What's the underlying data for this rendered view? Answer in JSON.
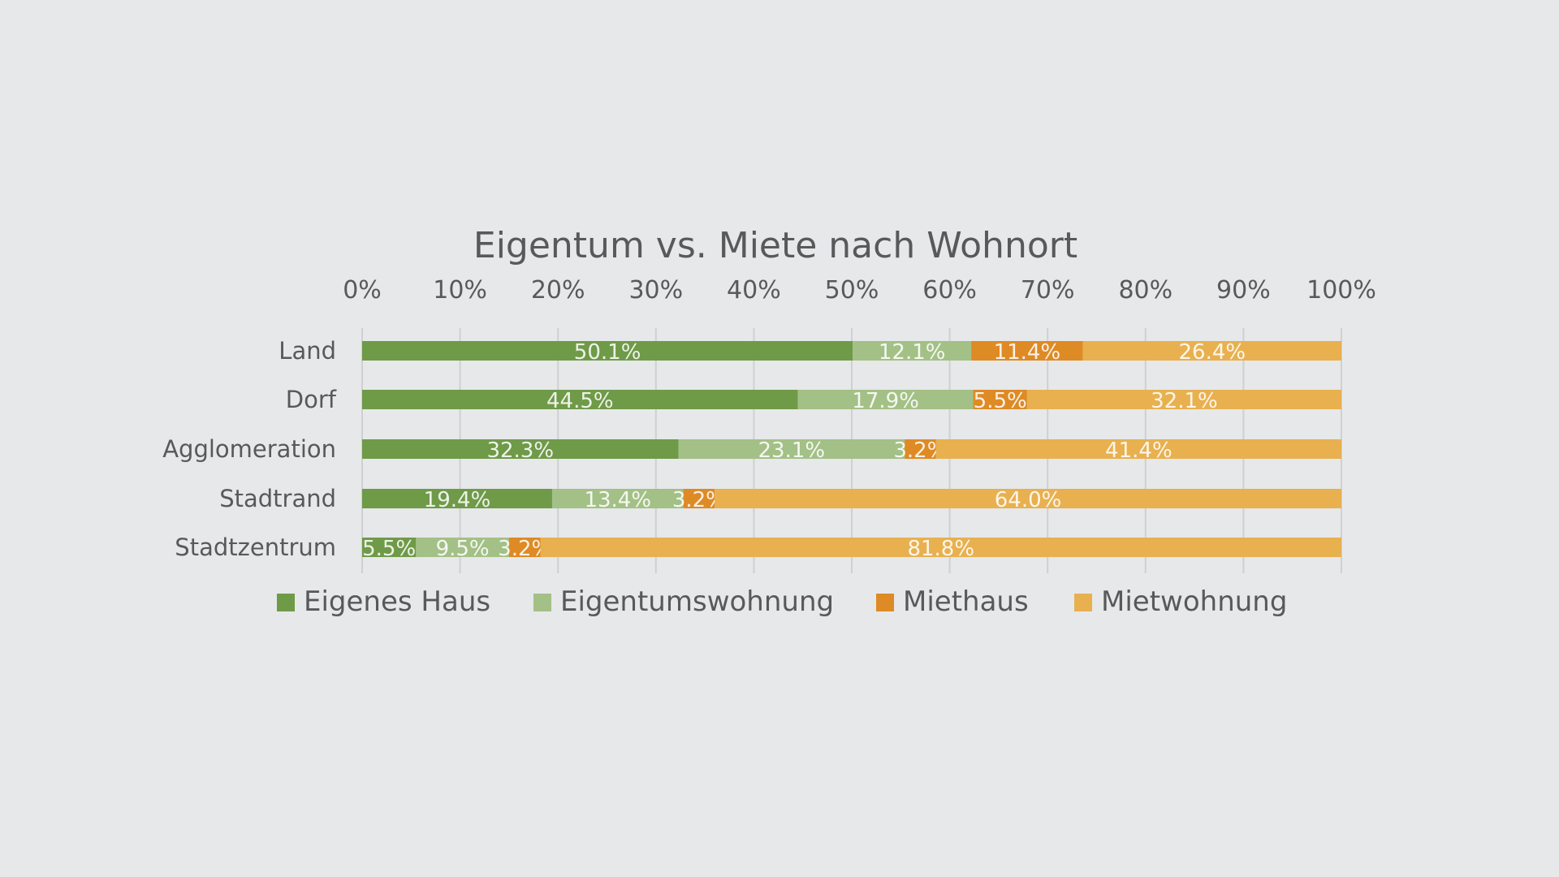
{
  "chart_data": {
    "type": "bar",
    "orientation": "horizontal",
    "stacked": true,
    "title": "Eigentum vs. Miete nach Wohnort",
    "categories": [
      "Land",
      "Dorf",
      "Agglomeration",
      "Stadtrand",
      "Stadtzentrum"
    ],
    "series": [
      {
        "name": "Eigenes Haus",
        "color": "#6f9a48",
        "values": [
          50.1,
          44.5,
          32.3,
          19.4,
          5.5
        ]
      },
      {
        "name": "Eigentumswohnung",
        "color": "#a3c086",
        "values": [
          12.1,
          17.9,
          23.1,
          13.4,
          9.5
        ]
      },
      {
        "name": "Miethaus",
        "color": "#de8a25",
        "values": [
          11.4,
          5.5,
          3.2,
          3.2,
          3.2
        ]
      },
      {
        "name": "Mietwohnung",
        "color": "#e8b04f",
        "values": [
          26.4,
          32.1,
          41.4,
          64.0,
          81.8
        ]
      }
    ],
    "data_labels": [
      [
        "50.1%",
        "12.1%",
        "11.4%",
        "26.4%"
      ],
      [
        "44.5%",
        "17.9%",
        "5.5%",
        "32.1%"
      ],
      [
        "32.3%",
        "23.1%",
        "3.2%",
        "41.4%"
      ],
      [
        "19.4%",
        "13.4%",
        "3.2%",
        "64.0%"
      ],
      [
        "5.5%",
        "9.5%",
        "3.2%",
        "81.8%"
      ]
    ],
    "xaxis": {
      "position": "top",
      "range": [
        0,
        100
      ],
      "ticks": [
        0,
        10,
        20,
        30,
        40,
        50,
        60,
        70,
        80,
        90,
        100
      ],
      "tick_labels": [
        "0%",
        "10%",
        "20%",
        "30%",
        "40%",
        "50%",
        "60%",
        "70%",
        "80%",
        "90%",
        "100%"
      ]
    },
    "grid": true,
    "legend": "bottom"
  }
}
